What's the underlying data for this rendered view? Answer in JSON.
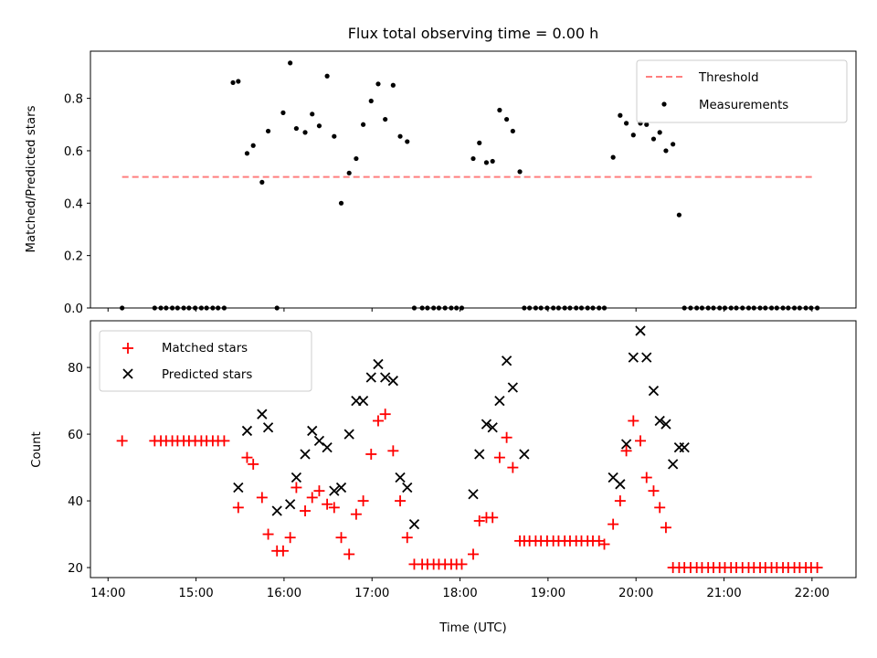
{
  "chart_data": [
    {
      "type": "scatter",
      "title": "Flux total observing time = 0.00 h",
      "xlabel": "",
      "ylabel": "Matched/Predicted stars",
      "xlim": [
        13.8,
        22.5
      ],
      "ylim": [
        0,
        0.98
      ],
      "yticks": [
        0.0,
        0.2,
        0.4,
        0.6,
        0.8
      ],
      "ytick_labels": [
        "0.0",
        "0.2",
        "0.4",
        "0.6",
        "0.8"
      ],
      "xticks": [
        14,
        15,
        16,
        17,
        18,
        19,
        20,
        21,
        22
      ],
      "show_xtick_labels": false,
      "legend": {
        "position": "top-right",
        "entries": [
          "Threshold",
          "Measurements"
        ]
      },
      "threshold": {
        "name": "Threshold",
        "y": 0.5,
        "x": [
          14.16,
          22.04
        ],
        "color": "#ff7f7f"
      },
      "series": [
        {
          "name": "Measurements",
          "color": "#000000",
          "x": [
            14.16,
            14.53,
            14.6,
            14.66,
            14.73,
            14.79,
            14.86,
            14.92,
            14.99,
            15.06,
            15.12,
            15.19,
            15.25,
            15.32,
            15.42,
            15.48,
            15.58,
            15.65,
            15.75,
            15.82,
            15.92,
            15.99,
            16.07,
            16.14,
            16.24,
            16.32,
            16.4,
            16.49,
            16.57,
            16.65,
            16.74,
            16.82,
            16.9,
            16.99,
            17.07,
            17.15,
            17.24,
            17.32,
            17.4,
            17.48,
            17.57,
            17.63,
            17.7,
            17.76,
            17.83,
            17.9,
            17.96,
            18.02,
            18.15,
            18.22,
            18.3,
            18.37,
            18.45,
            18.53,
            18.6,
            18.68,
            18.73,
            18.79,
            18.86,
            18.92,
            18.99,
            19.06,
            19.12,
            19.19,
            19.25,
            19.32,
            19.38,
            19.45,
            19.51,
            19.58,
            19.64,
            19.74,
            19.82,
            19.89,
            19.97,
            20.05,
            20.12,
            20.2,
            20.27,
            20.34,
            20.42,
            20.49,
            20.55,
            20.62,
            20.69,
            20.75,
            20.82,
            20.88,
            20.95,
            21.01,
            21.08,
            21.14,
            21.21,
            21.28,
            21.34,
            21.41,
            21.47,
            21.54,
            21.6,
            21.67,
            21.73,
            21.8,
            21.86,
            21.93,
            21.99,
            22.06
          ],
          "y": [
            0,
            0,
            0,
            0,
            0,
            0,
            0,
            0,
            0,
            0,
            0,
            0,
            0,
            0,
            0.86,
            0.865,
            0.59,
            0.62,
            0.48,
            0.675,
            0,
            0.745,
            0.935,
            0.685,
            0.67,
            0.74,
            0.695,
            0.885,
            0.655,
            0.4,
            0.515,
            0.57,
            0.7,
            0.79,
            0.855,
            0.72,
            0.85,
            0.655,
            0.635,
            0,
            0,
            0,
            0,
            0,
            0,
            0,
            0,
            0,
            0.57,
            0.63,
            0.555,
            0.56,
            0.755,
            0.72,
            0.675,
            0.52,
            0,
            0,
            0,
            0,
            0,
            0,
            0,
            0,
            0,
            0,
            0,
            0,
            0,
            0,
            0,
            0.575,
            0.735,
            0.705,
            0.66,
            0.705,
            0.7,
            0.645,
            0.67,
            0.6,
            0.625,
            0.355,
            0,
            0,
            0,
            0,
            0,
            0,
            0,
            0,
            0,
            0,
            0,
            0,
            0,
            0,
            0,
            0,
            0,
            0,
            0,
            0,
            0,
            0,
            0,
            0
          ]
        }
      ]
    },
    {
      "type": "scatter",
      "title": "",
      "xlabel": "Time (UTC)",
      "ylabel": "Count",
      "xlim": [
        13.8,
        22.5
      ],
      "ylim": [
        17,
        94
      ],
      "yticks": [
        20,
        40,
        60,
        80
      ],
      "ytick_labels": [
        "20",
        "40",
        "60",
        "80"
      ],
      "xticks": [
        14,
        15,
        16,
        17,
        18,
        19,
        20,
        21,
        22
      ],
      "xtick_labels": [
        "14:00",
        "15:00",
        "16:00",
        "17:00",
        "18:00",
        "19:00",
        "20:00",
        "21:00",
        "22:00"
      ],
      "legend": {
        "position": "top-left",
        "entries": [
          "Matched stars",
          "Predicted stars"
        ]
      },
      "series": [
        {
          "name": "Matched stars",
          "marker": "plus",
          "color": "#ff0000",
          "x": [
            14.16,
            14.53,
            14.6,
            14.66,
            14.73,
            14.79,
            14.86,
            14.92,
            14.99,
            15.06,
            15.12,
            15.19,
            15.25,
            15.32,
            15.48,
            15.58,
            15.65,
            15.75,
            15.82,
            15.92,
            15.99,
            16.07,
            16.14,
            16.24,
            16.32,
            16.4,
            16.49,
            16.57,
            16.65,
            16.74,
            16.82,
            16.9,
            16.99,
            17.07,
            17.15,
            17.24,
            17.32,
            17.4,
            17.48,
            17.57,
            17.63,
            17.7,
            17.76,
            17.83,
            17.9,
            17.96,
            18.02,
            18.15,
            18.22,
            18.3,
            18.37,
            18.45,
            18.53,
            18.6,
            18.68,
            18.73,
            18.79,
            18.86,
            18.92,
            18.99,
            19.06,
            19.12,
            19.19,
            19.25,
            19.32,
            19.38,
            19.45,
            19.51,
            19.58,
            19.64,
            19.74,
            19.82,
            19.89,
            19.97,
            20.05,
            20.12,
            20.2,
            20.27,
            20.34,
            20.42,
            20.49,
            20.55,
            20.62,
            20.69,
            20.75,
            20.82,
            20.88,
            20.95,
            21.01,
            21.08,
            21.14,
            21.21,
            21.28,
            21.34,
            21.41,
            21.47,
            21.54,
            21.6,
            21.67,
            21.73,
            21.8,
            21.86,
            21.93,
            21.99,
            22.06
          ],
          "y": [
            58,
            58,
            58,
            58,
            58,
            58,
            58,
            58,
            58,
            58,
            58,
            58,
            58,
            58,
            38,
            53,
            51,
            41,
            30,
            25,
            25,
            29,
            44,
            37,
            41,
            43,
            39,
            38,
            29,
            24,
            36,
            40,
            54,
            64,
            66,
            55,
            40,
            29,
            21,
            21,
            21,
            21,
            21,
            21,
            21,
            21,
            21,
            24,
            34,
            35,
            35,
            53,
            59,
            50,
            28,
            28,
            28,
            28,
            28,
            28,
            28,
            28,
            28,
            28,
            28,
            28,
            28,
            28,
            28,
            27,
            33,
            40,
            55,
            64,
            58,
            47,
            43,
            38,
            32,
            20,
            20,
            20,
            20,
            20,
            20,
            20,
            20,
            20,
            20,
            20,
            20,
            20,
            20,
            20,
            20,
            20,
            20,
            20,
            20,
            20,
            20,
            20,
            20,
            20,
            20
          ]
        },
        {
          "name": "Predicted stars",
          "marker": "x",
          "color": "#000000",
          "x": [
            15.48,
            15.58,
            15.75,
            15.82,
            15.92,
            16.07,
            16.14,
            16.24,
            16.32,
            16.4,
            16.49,
            16.57,
            16.65,
            16.74,
            16.82,
            16.9,
            16.99,
            17.07,
            17.15,
            17.24,
            17.32,
            17.4,
            17.48,
            18.15,
            18.22,
            18.3,
            18.37,
            18.45,
            18.53,
            18.6,
            18.73,
            19.74,
            19.82,
            19.89,
            19.97,
            20.05,
            20.12,
            20.2,
            20.27,
            20.34,
            20.42,
            20.49,
            20.55
          ],
          "y": [
            44,
            61,
            66,
            62,
            37,
            39,
            47,
            54,
            61,
            58,
            56,
            43,
            44,
            60,
            70,
            70,
            77,
            81,
            77,
            76,
            47,
            44,
            33,
            42,
            54,
            63,
            62,
            70,
            82,
            74,
            54,
            47,
            45,
            57,
            83,
            91,
            83,
            73,
            64,
            63,
            51,
            56,
            56
          ]
        }
      ]
    }
  ]
}
